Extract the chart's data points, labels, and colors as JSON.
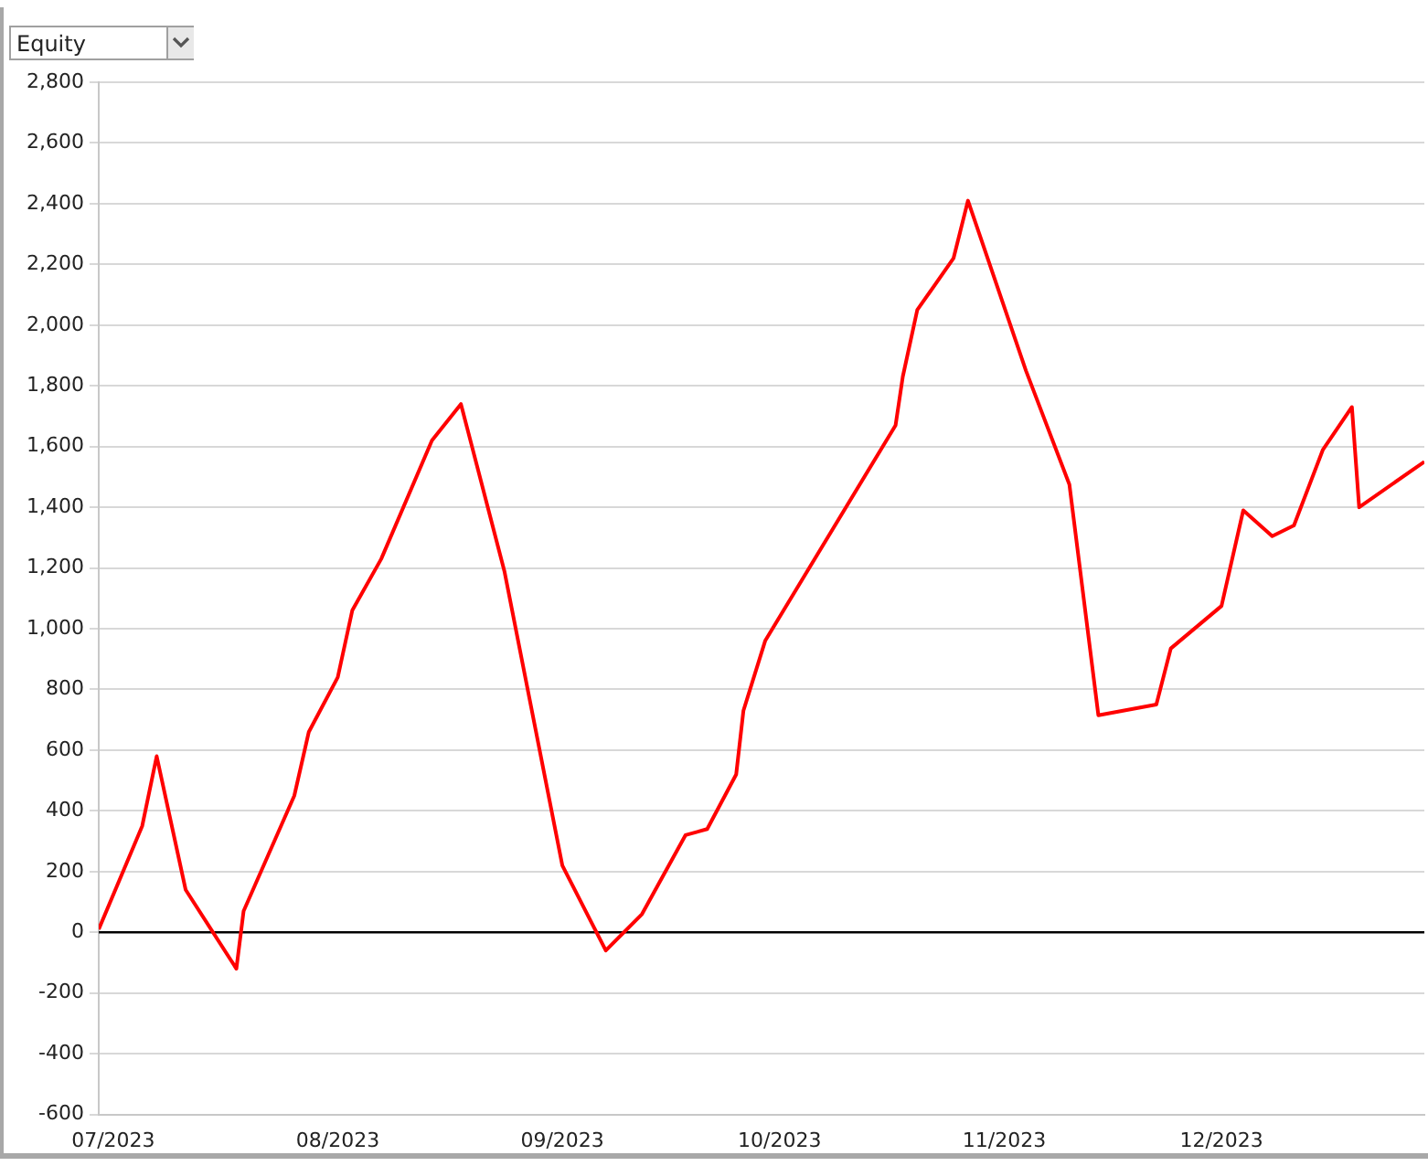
{
  "chart_data": {
    "type": "line",
    "title": "Equity",
    "x": [
      "2023-06-29",
      "2023-07-05",
      "2023-07-07",
      "2023-07-11",
      "2023-07-18",
      "2023-07-19",
      "2023-07-26",
      "2023-07-28",
      "2023-08-01",
      "2023-08-03",
      "2023-08-07",
      "2023-08-14",
      "2023-08-18",
      "2023-08-24",
      "2023-09-01",
      "2023-09-07",
      "2023-09-12",
      "2023-09-18",
      "2023-09-21",
      "2023-09-25",
      "2023-09-26",
      "2023-09-29",
      "2023-10-17",
      "2023-10-18",
      "2023-10-20",
      "2023-10-25",
      "2023-10-27",
      "2023-11-04",
      "2023-11-10",
      "2023-11-14",
      "2023-11-22",
      "2023-11-24",
      "2023-12-01",
      "2023-12-04",
      "2023-12-08",
      "2023-12-11",
      "2023-12-15",
      "2023-12-19",
      "2023-12-20",
      "2023-12-29"
    ],
    "series": [
      {
        "color": "#ff0000",
        "values": [
          10,
          350,
          580,
          140,
          -120,
          70,
          450,
          660,
          840,
          1060,
          1230,
          1620,
          1740,
          1190,
          220,
          -60,
          60,
          320,
          340,
          520,
          730,
          960,
          1670,
          1830,
          2050,
          2220,
          2410,
          1850,
          1475,
          715,
          750,
          935,
          1075,
          1390,
          1305,
          1340,
          1590,
          1730,
          1400,
          1550
        ]
      }
    ],
    "xlim": [
      "2023-06-29",
      "2023-12-29"
    ],
    "xticks": [
      {
        "value": "2023-07-01",
        "label": "07/2023"
      },
      {
        "value": "2023-08-01",
        "label": "08/2023"
      },
      {
        "value": "2023-09-01",
        "label": "09/2023"
      },
      {
        "value": "2023-10-01",
        "label": "10/2023"
      },
      {
        "value": "2023-11-01",
        "label": "11/2023"
      },
      {
        "value": "2023-12-01",
        "label": "12/2023"
      }
    ],
    "ylim": [
      -600,
      2800
    ],
    "yticks": [
      {
        "value": -600,
        "label": "-600"
      },
      {
        "value": -400,
        "label": "-400"
      },
      {
        "value": -200,
        "label": "-200"
      },
      {
        "value": 0,
        "label": "0"
      },
      {
        "value": 200,
        "label": "200"
      },
      {
        "value": 400,
        "label": "400"
      },
      {
        "value": 600,
        "label": "600"
      },
      {
        "value": 800,
        "label": "800"
      },
      {
        "value": 1000,
        "label": "1,000"
      },
      {
        "value": 1200,
        "label": "1,200"
      },
      {
        "value": 1400,
        "label": "1,400"
      },
      {
        "value": 1600,
        "label": "1,600"
      },
      {
        "value": 1800,
        "label": "1,800"
      },
      {
        "value": 2000,
        "label": "2,000"
      },
      {
        "value": 2200,
        "label": "2,200"
      },
      {
        "value": 2400,
        "label": "2,400"
      },
      {
        "value": 2600,
        "label": "2,600"
      },
      {
        "value": 2800,
        "label": "2,800"
      }
    ],
    "grid": "y",
    "legend": false,
    "marker": "none",
    "line_style": "solid",
    "ref_lines": [
      {
        "axis": "y",
        "value": 0,
        "color": "#000000"
      }
    ]
  }
}
